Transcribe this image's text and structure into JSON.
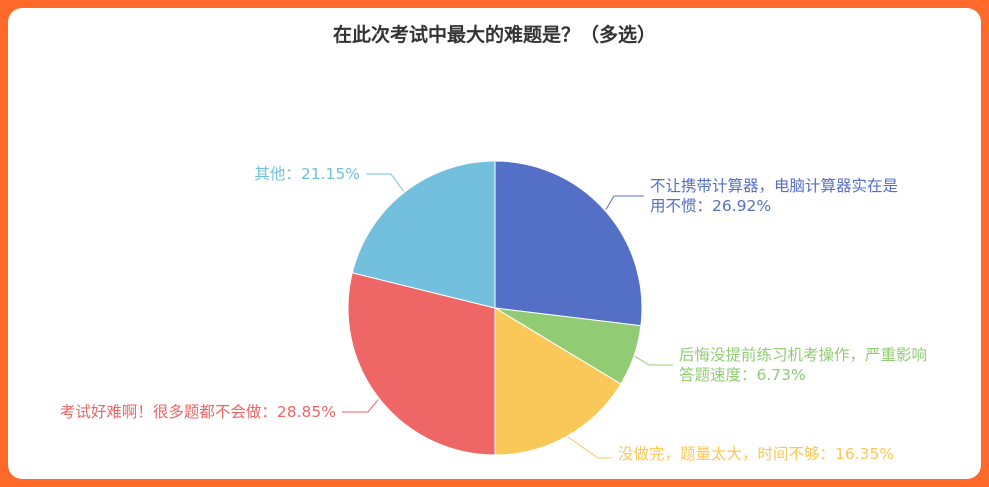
{
  "chart_data": {
    "type": "pie",
    "title": "在此次考试中最大的难题是？（多选）",
    "slices": [
      {
        "label_lines": [
          "不让携带计算器，电脑计算器实在是",
          "用不惯：26.92%"
        ],
        "value": 26.92,
        "color": "#5470c6"
      },
      {
        "label_lines": [
          "后悔没提前练习机考操作，严重影响",
          "答题速度：6.73%"
        ],
        "value": 6.73,
        "color": "#91cc75"
      },
      {
        "label_lines": [
          "没做完，题量太大，时间不够：16.35%"
        ],
        "value": 16.35,
        "color": "#fac858"
      },
      {
        "label_lines": [
          "考试好难啊！很多题都不会做：28.85%"
        ],
        "value": 28.85,
        "color": "#ee6666"
      },
      {
        "label_lines": [
          "其他：21.15%"
        ],
        "value": 21.15,
        "color": "#73c0de"
      }
    ]
  }
}
